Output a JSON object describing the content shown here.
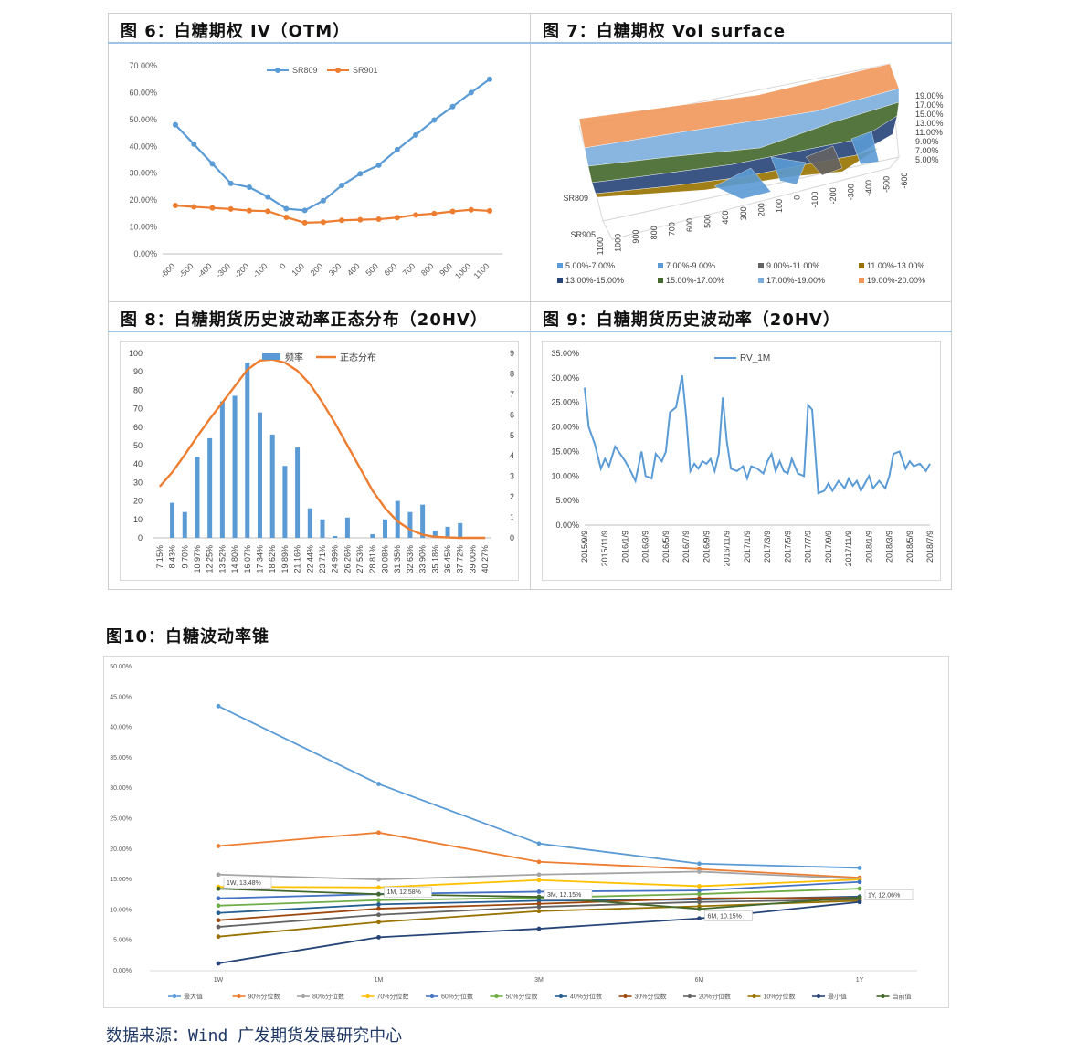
{
  "fig6": {
    "title": "图 6：白糖期权 IV（OTM）",
    "chart_data": {
      "type": "line",
      "categories": [
        "-600",
        "-500",
        "-400",
        "-300",
        "-200",
        "-100",
        "0",
        "100",
        "200",
        "300",
        "400",
        "500",
        "600",
        "700",
        "800",
        "900",
        "1000",
        "1100"
      ],
      "y_ticks": [
        "0.00%",
        "10.00%",
        "20.00%",
        "30.00%",
        "40.00%",
        "50.00%",
        "60.00%",
        "70.00%"
      ],
      "ylim": [
        0,
        70
      ],
      "series": [
        {
          "name": "SR809",
          "color": "#5b9bd5",
          "values": [
            48.0,
            40.8,
            33.5,
            26.2,
            24.8,
            21.2,
            16.8,
            16.2,
            19.8,
            25.5,
            29.8,
            33.0,
            38.8,
            44.2,
            49.8,
            54.8,
            60.0,
            65.0
          ]
        },
        {
          "name": "SR901",
          "color": "#ed7d31",
          "values": [
            18.0,
            17.5,
            17.1,
            16.7,
            16.1,
            15.9,
            13.6,
            11.6,
            11.8,
            12.5,
            12.7,
            12.9,
            13.5,
            14.5,
            15.0,
            15.8,
            16.4,
            16.0
          ]
        }
      ],
      "legend": "top"
    }
  },
  "fig7": {
    "title": "图 7：白糖期权 Vol surface",
    "chart_data": {
      "type": "surface",
      "x_labels": [
        "1100",
        "1000",
        "900",
        "800",
        "700",
        "600",
        "500",
        "400",
        "300",
        "200",
        "100",
        "0",
        "-100",
        "-200",
        "-300",
        "-400",
        "-500",
        "-600"
      ],
      "depth_labels": [
        "SR809",
        "SR905"
      ],
      "z_ticks": [
        "5.00%",
        "7.00%",
        "9.00%",
        "11.00%",
        "13.00%",
        "15.00%",
        "17.00%",
        "19.00%"
      ],
      "legend": [
        {
          "label": "5.00%-7.00%",
          "color": "#5b9bd5"
        },
        {
          "label": "7.00%-9.00%",
          "color": "#5b9bd5"
        },
        {
          "label": "9.00%-11.00%",
          "color": "#636363"
        },
        {
          "label": "11.00%-13.00%",
          "color": "#997300"
        },
        {
          "label": "13.00%-15.00%",
          "color": "#264478"
        },
        {
          "label": "15.00%-17.00%",
          "color": "#43682b"
        },
        {
          "label": "17.00%-19.00%",
          "color": "#7cafdd"
        },
        {
          "label": "19.00%-20.00%",
          "color": "#f1975a"
        }
      ]
    }
  },
  "fig8": {
    "title": "图 8：白糖期货历史波动率正态分布（20HV）",
    "chart_data": {
      "type": "bar",
      "categories": [
        "7.15%",
        "8.43%",
        "9.70%",
        "10.97%",
        "12.25%",
        "13.52%",
        "14.80%",
        "16.07%",
        "17.34%",
        "18.62%",
        "19.89%",
        "21.16%",
        "22.44%",
        "23.71%",
        "24.99%",
        "26.26%",
        "27.53%",
        "28.81%",
        "30.08%",
        "31.35%",
        "32.63%",
        "33.90%",
        "35.18%",
        "36.45%",
        "37.72%",
        "39.00%",
        "40.27%"
      ],
      "series": [
        {
          "name": "频率",
          "color": "#5b9bd5",
          "axis": "left",
          "values": [
            0,
            19,
            14,
            44,
            54,
            74,
            77,
            95,
            68,
            56,
            39,
            49,
            16,
            10,
            1,
            11,
            0,
            2,
            10,
            20,
            14,
            18,
            4,
            6,
            8,
            0,
            0
          ]
        },
        {
          "name": "正态分布",
          "color": "#ed7d31",
          "axis": "right",
          "values": [
            2.5,
            3.2,
            4.05,
            4.95,
            5.8,
            6.6,
            7.4,
            8.2,
            8.65,
            8.7,
            8.55,
            8.15,
            7.5,
            6.6,
            5.6,
            4.5,
            3.4,
            2.3,
            1.45,
            0.8,
            0.4,
            0.15,
            0.05,
            0.02,
            0.0,
            0.0,
            0.0
          ]
        }
      ],
      "left_ticks": [
        "0",
        "10",
        "20",
        "30",
        "40",
        "50",
        "60",
        "70",
        "80",
        "90",
        "100"
      ],
      "right_ticks": [
        "0",
        "1",
        "2",
        "3",
        "4",
        "5",
        "6",
        "7",
        "8",
        "9"
      ],
      "ylim": [
        0,
        100
      ],
      "y2lim": [
        0,
        9
      ],
      "legend": "top"
    }
  },
  "fig9": {
    "title": "图 9：白糖期货历史波动率（20HV）",
    "chart_data": {
      "type": "line",
      "x_labels": [
        "2015/9/9",
        "2015/11/9",
        "2016/1/9",
        "2016/3/9",
        "2016/5/9",
        "2016/7/9",
        "2016/9/9",
        "2016/11/9",
        "2017/1/9",
        "2017/3/9",
        "2017/5/9",
        "2017/7/9",
        "2017/9/9",
        "2017/11/9",
        "2018/1/9",
        "2018/3/9",
        "2018/5/9",
        "2018/7/9"
      ],
      "y_ticks": [
        "0.00%",
        "5.00%",
        "10.00%",
        "15.00%",
        "20.00%",
        "25.00%",
        "30.00%",
        "35.00%"
      ],
      "ylim": [
        0,
        35
      ],
      "series": [
        {
          "name": "RV_1M",
          "color": "#5b9bd5",
          "x": [
            0,
            0.2,
            0.5,
            0.8,
            1.0,
            1.2,
            1.5,
            2.0,
            2.2,
            2.5,
            2.8,
            3.0,
            3.3,
            3.5,
            3.8,
            4.0,
            4.2,
            4.5,
            4.8,
            5.0,
            5.2,
            5.4,
            5.6,
            5.8,
            6.0,
            6.2,
            6.4,
            6.6,
            6.8,
            7.0,
            7.2,
            7.5,
            7.8,
            8.0,
            8.2,
            8.5,
            8.8,
            9.0,
            9.2,
            9.4,
            9.6,
            9.8,
            10.0,
            10.2,
            10.5,
            10.8,
            11.0,
            11.2,
            11.5,
            11.8,
            12.0,
            12.2,
            12.5,
            12.8,
            13.0,
            13.2,
            13.4,
            13.6,
            13.8,
            14.0,
            14.2,
            14.5,
            14.8,
            15.0,
            15.2,
            15.5,
            15.8,
            16.0,
            16.2,
            16.5,
            16.8,
            17.0
          ],
          "values": [
            28.0,
            20.0,
            16.5,
            11.5,
            13.5,
            12.0,
            16.0,
            13.0,
            11.5,
            9.0,
            15.0,
            10.0,
            9.5,
            14.5,
            13.0,
            15.0,
            23.0,
            24.0,
            30.5,
            22.0,
            11.0,
            12.5,
            11.5,
            13.0,
            12.5,
            13.5,
            11.0,
            14.5,
            26.0,
            17.0,
            11.5,
            11.0,
            12.0,
            9.5,
            12.0,
            11.5,
            10.5,
            13.0,
            14.5,
            11.0,
            13.0,
            11.0,
            10.5,
            13.5,
            10.5,
            10.0,
            24.5,
            23.5,
            6.5,
            7.0,
            8.5,
            7.0,
            9.0,
            7.5,
            9.5,
            8.0,
            9.0,
            7.0,
            8.5,
            10.0,
            7.5,
            9.0,
            7.5,
            10.0,
            14.5,
            15.0,
            11.5,
            13.0,
            12.0,
            12.5,
            11.0,
            12.5
          ]
        }
      ],
      "legend": "top"
    }
  },
  "fig10": {
    "title": "图10：白糖波动率锥",
    "chart_data": {
      "type": "line",
      "categories": [
        "1W",
        "1M",
        "3M",
        "6M",
        "1Y"
      ],
      "y_ticks": [
        "0.00%",
        "5.00%",
        "10.00%",
        "15.00%",
        "20.00%",
        "25.00%",
        "30.00%",
        "35.00%",
        "40.00%",
        "45.00%",
        "50.00%"
      ],
      "ylim": [
        0,
        50
      ],
      "series": [
        {
          "name": "最大值",
          "color": "#5b9bd5",
          "values": [
            43.5,
            30.7,
            20.9,
            17.6,
            16.9
          ]
        },
        {
          "name": "90%分位数",
          "color": "#ed7d31",
          "values": [
            20.5,
            22.7,
            17.9,
            16.7,
            15.3
          ]
        },
        {
          "name": "80%分位数",
          "color": "#a5a5a5",
          "values": [
            15.8,
            15.0,
            15.8,
            16.3,
            15.1
          ]
        },
        {
          "name": "70%分位数",
          "color": "#ffc000",
          "values": [
            13.8,
            13.7,
            14.9,
            13.9,
            15.0
          ]
        },
        {
          "name": "60%分位数",
          "color": "#4472c4",
          "values": [
            11.9,
            12.6,
            13.0,
            13.2,
            14.6
          ]
        },
        {
          "name": "50%分位数",
          "color": "#70ad47",
          "values": [
            10.7,
            11.6,
            12.0,
            12.6,
            13.5
          ]
        },
        {
          "name": "40%分位数",
          "color": "#255e91",
          "values": [
            9.5,
            10.9,
            11.5,
            11.7,
            12.2
          ]
        },
        {
          "name": "30%分位数",
          "color": "#9e480e",
          "values": [
            8.3,
            10.2,
            11.0,
            11.9,
            12.0
          ]
        },
        {
          "name": "20%分位数",
          "color": "#636363",
          "values": [
            7.2,
            9.2,
            10.5,
            11.3,
            11.7
          ]
        },
        {
          "name": "10%分位数",
          "color": "#997300",
          "values": [
            5.6,
            8.0,
            9.8,
            10.6,
            11.5
          ]
        },
        {
          "name": "最小值",
          "color": "#264478",
          "values": [
            1.2,
            5.5,
            6.9,
            8.6,
            11.3
          ]
        },
        {
          "name": "当前值",
          "color": "#43682b",
          "values": [
            13.48,
            12.58,
            12.15,
            10.15,
            12.06
          ]
        }
      ],
      "data_labels": [
        "1W, 13.48%",
        "1M, 12.58%",
        "3M, 12.15%",
        "6M, 10.15%",
        "1Y, 12.06%"
      ],
      "legend": "bottom"
    }
  },
  "source": "数据来源：Wind 广发期货发展研究中心"
}
